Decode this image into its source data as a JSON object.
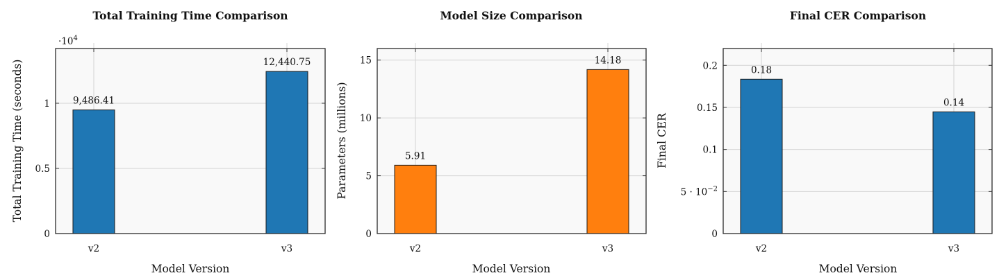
{
  "colors": {
    "blue": "#1f77b4",
    "orange": "#ff7f0e",
    "background": "#f9f9f9",
    "grid": "#d4d4d4"
  },
  "chart_data": [
    {
      "type": "bar",
      "title": "Total Training Time Comparison",
      "xlabel": "Model Version",
      "ylabel": "Total Training Time (seconds)",
      "categories": [
        "v2",
        "v3"
      ],
      "series": [
        {
          "values": [
            9486.41,
            12440.75
          ],
          "data_labels": [
            "9,486.41",
            "12,440.75"
          ],
          "color": "#1f77b4"
        }
      ],
      "ylim": [
        0,
        14200
      ],
      "yticks": [
        0,
        5000,
        10000
      ],
      "ytick_labels": [
        "0",
        "0.5",
        "1"
      ],
      "y_multiplier_base": "·10",
      "y_multiplier_exp": "4",
      "grid": true
    },
    {
      "type": "bar",
      "title": "Model Size Comparison",
      "xlabel": "Model Version",
      "ylabel": "Parameters (millions)",
      "categories": [
        "v2",
        "v3"
      ],
      "series": [
        {
          "values": [
            5.91,
            14.18
          ],
          "data_labels": [
            "5.91",
            "14.18"
          ],
          "color": "#ff7f0e"
        }
      ],
      "ylim": [
        0,
        16
      ],
      "yticks": [
        0,
        5,
        10,
        15
      ],
      "ytick_labels": [
        "0",
        "5",
        "10",
        "15"
      ],
      "grid": true
    },
    {
      "type": "bar",
      "title": "Final CER Comparison",
      "xlabel": "Model Version",
      "ylabel": "Final CER",
      "categories": [
        "v2",
        "v3"
      ],
      "series": [
        {
          "values": [
            0.1835,
            0.1447
          ],
          "data_labels": [
            "0.18",
            "0.14"
          ],
          "color": "#1f77b4"
        }
      ],
      "ylim": [
        0,
        0.22
      ],
      "yticks": [
        0,
        0.05,
        0.1,
        0.15,
        0.2
      ],
      "ytick_labels": [
        "0",
        "5 · 10",
        "0.1",
        "0.15",
        "0.2"
      ],
      "ytick_superscripts": [
        "",
        "−2",
        "",
        "",
        ""
      ],
      "grid": true
    }
  ]
}
